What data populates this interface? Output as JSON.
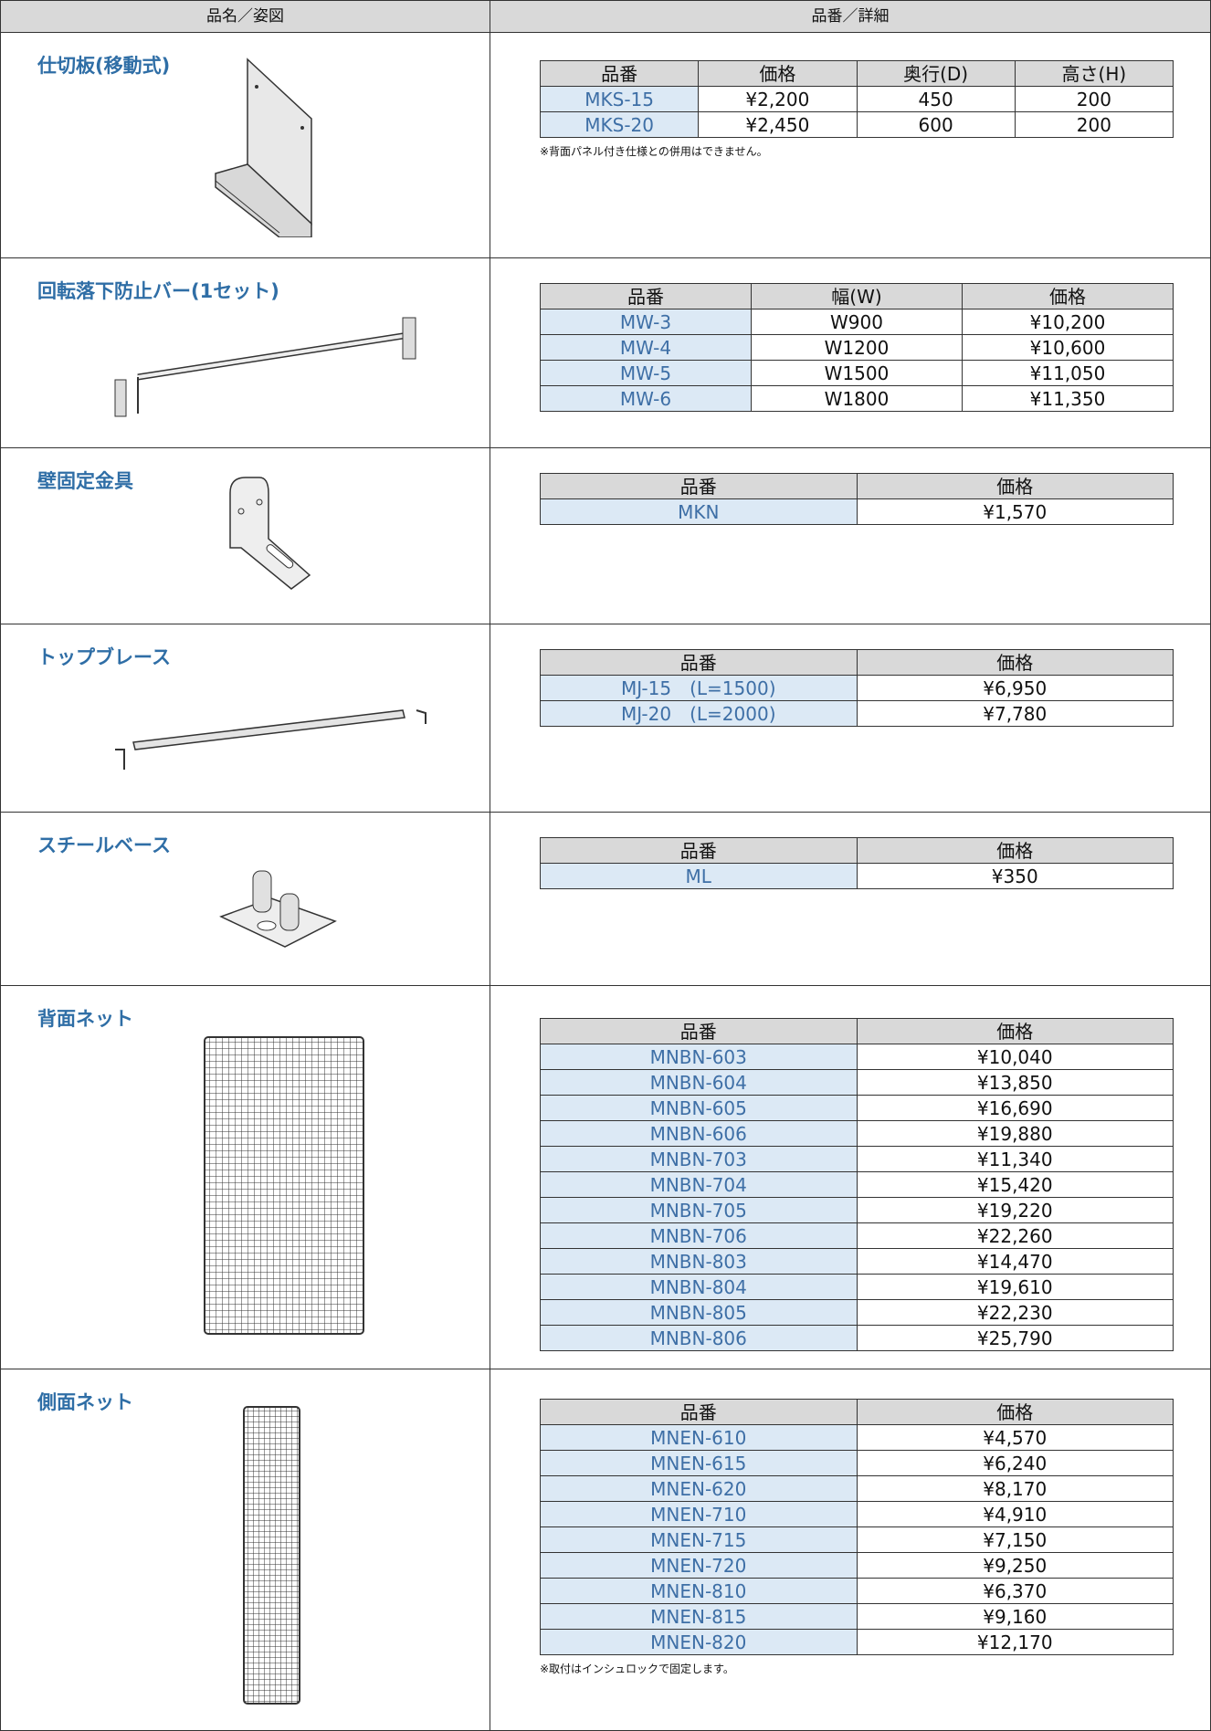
{
  "header": [
    "品名／姿図",
    "品番／詳細"
  ],
  "sections": [
    {
      "name": "仕切板(移動式)",
      "table": {
        "header": [
          "品番",
          "価格",
          "奥行(D)",
          "高さ(H)"
        ],
        "rows": [
          [
            "MKS-15",
            "¥2,200",
            "450",
            "200"
          ],
          [
            "MKS-20",
            "¥2,450",
            "600",
            "200"
          ]
        ]
      },
      "note": "※背面パネル付き仕様との併用はできません。"
    },
    {
      "name": "回転落下防止バー(1セット)",
      "table": {
        "header": [
          "品番",
          "幅(W)",
          "価格"
        ],
        "rows": [
          [
            "MW-3",
            "W900",
            "¥10,200"
          ],
          [
            "MW-4",
            "W1200",
            "¥10,600"
          ],
          [
            "MW-5",
            "W1500",
            "¥11,050"
          ],
          [
            "MW-6",
            "W1800",
            "¥11,350"
          ]
        ]
      }
    },
    {
      "name": "壁固定金具",
      "table": {
        "header": [
          "品番",
          "価格"
        ],
        "rows": [
          [
            "MKN",
            "¥1,570"
          ]
        ]
      }
    },
    {
      "name": "トップブレース",
      "table": {
        "header": [
          "品番",
          "価格"
        ],
        "rows": [
          [
            "MJ-15　(L=1500)",
            "¥6,950"
          ],
          [
            "MJ-20　(L=2000)",
            "¥7,780"
          ]
        ]
      }
    },
    {
      "name": "スチールベース",
      "table": {
        "header": [
          "品番",
          "価格"
        ],
        "rows": [
          [
            "ML",
            "¥350"
          ]
        ]
      }
    },
    {
      "name": "背面ネット",
      "table": {
        "header": [
          "品番",
          "価格"
        ],
        "rows": [
          [
            "MNBN-603",
            "¥10,040"
          ],
          [
            "MNBN-604",
            "¥13,850"
          ],
          [
            "MNBN-605",
            "¥16,690"
          ],
          [
            "MNBN-606",
            "¥19,880"
          ],
          [
            "MNBN-703",
            "¥11,340"
          ],
          [
            "MNBN-704",
            "¥15,420"
          ],
          [
            "MNBN-705",
            "¥19,220"
          ],
          [
            "MNBN-706",
            "¥22,260"
          ],
          [
            "MNBN-803",
            "¥14,470"
          ],
          [
            "MNBN-804",
            "¥19,610"
          ],
          [
            "MNBN-805",
            "¥22,230"
          ],
          [
            "MNBN-806",
            "¥25,790"
          ]
        ]
      }
    },
    {
      "name": "側面ネット",
      "table": {
        "header": [
          "品番",
          "価格"
        ],
        "rows": [
          [
            "MNEN-610",
            "¥4,570"
          ],
          [
            "MNEN-615",
            "¥6,240"
          ],
          [
            "MNEN-620",
            "¥8,170"
          ],
          [
            "MNEN-710",
            "¥4,910"
          ],
          [
            "MNEN-715",
            "¥7,150"
          ],
          [
            "MNEN-720",
            "¥9,250"
          ],
          [
            "MNEN-810",
            "¥6,370"
          ],
          [
            "MNEN-815",
            "¥9,160"
          ],
          [
            "MNEN-820",
            "¥12,170"
          ]
        ]
      },
      "note": "※取付はインシュロックで固定します。"
    }
  ]
}
